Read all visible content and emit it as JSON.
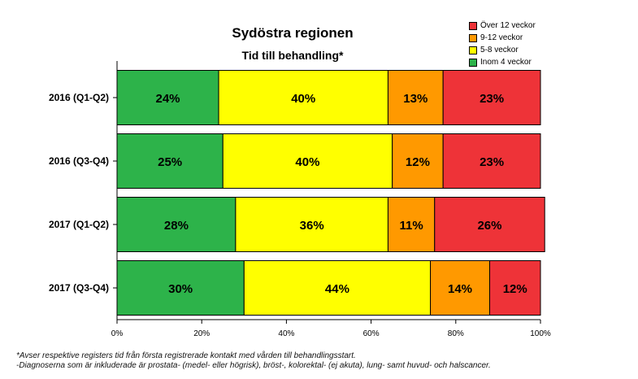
{
  "chart_data": {
    "type": "bar",
    "orientation": "horizontal",
    "stacked": true,
    "title": "Sydöstra regionen",
    "subtitle": "Tid till behandling*",
    "categories": [
      "2016 (Q1-Q2)",
      "2016 (Q3-Q4)",
      "2017 (Q1-Q2)",
      "2017 (Q3-Q4)"
    ],
    "series": [
      {
        "name": "Inom 4 veckor",
        "color": "#2db34a",
        "values": [
          24,
          25,
          28,
          30
        ],
        "labels": [
          "24%",
          "25%",
          "28%",
          "30%"
        ]
      },
      {
        "name": "5-8 veckor",
        "color": "#ffff00",
        "values": [
          40,
          40,
          36,
          44
        ],
        "labels": [
          "40%",
          "40%",
          "36%",
          "44%"
        ]
      },
      {
        "name": "9-12 veckor",
        "color": "#ff9900",
        "values": [
          13,
          12,
          11,
          14
        ],
        "labels": [
          "13%",
          "12%",
          "11%",
          "14%"
        ]
      },
      {
        "name": "Över 12 veckor",
        "color": "#ee3338",
        "values": [
          23,
          23,
          26,
          12
        ],
        "labels": [
          "23%",
          "23%",
          "26%",
          "12%"
        ]
      }
    ],
    "legend_order": [
      "Över 12 veckor",
      "9-12 veckor",
      "5-8 veckor",
      "Inom 4 veckor"
    ],
    "legend_position": "top-right",
    "xlim": [
      0,
      100
    ],
    "xticks": [
      "0%",
      "20%",
      "40%",
      "60%",
      "80%",
      "100%"
    ],
    "grid": false
  },
  "footnotes": [
    "*Avser respektive registers tid från första registrerade kontakt med vården till behandlingsstart.",
    "-Diagnoserna som är inkluderade är prostata- (medel- eller högrisk), bröst-, kolorektal- (ej akuta), lung- samt huvud- och halscancer."
  ]
}
